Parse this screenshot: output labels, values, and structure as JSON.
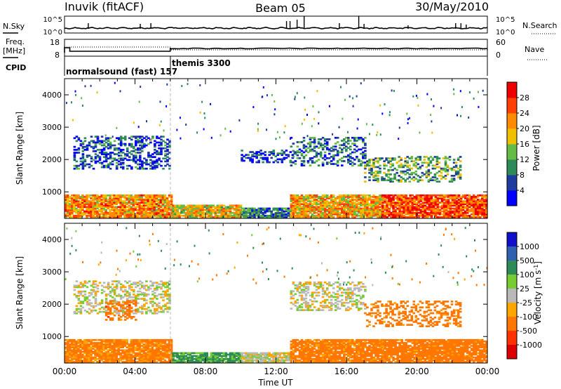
{
  "header": {
    "station": "Inuvik (fitACF)",
    "beam": "Beam 05",
    "date": "30/May/2010"
  },
  "nsky_panel": {
    "left_label": "N.Sky",
    "right_label": "N.Search",
    "ticks": [
      "10^5",
      "10^0"
    ],
    "right_ticks": [
      "10^5",
      "10^0"
    ]
  },
  "freq_panel": {
    "left_label_1": "Freq.",
    "left_label_2": "[MHz]",
    "right_label": "Nave",
    "ticks": [
      "18",
      "8"
    ],
    "right_ticks": [
      "60",
      "0"
    ]
  },
  "cpid": {
    "label": "CPID",
    "segments": [
      {
        "name": "normalsound (fast) 157",
        "start_hour": 0,
        "end_hour": 6
      },
      {
        "name": "themis 3300",
        "start_hour": 6,
        "end_hour": 24
      }
    ]
  },
  "colors": {
    "power_scale": [
      "#0000ff",
      "#1e3ca0",
      "#2e8b57",
      "#66bb44",
      "#f0c000",
      "#ff8c00",
      "#ff4000",
      "#ee0000"
    ],
    "velocity_scale": [
      "#1010cc",
      "#3060b0",
      "#2e8b57",
      "#77cc33",
      "#b9b9b9",
      "#ffa500",
      "#ff7700",
      "#ff3300",
      "#dd0000"
    ]
  },
  "chart_data": [
    {
      "type": "heatmap",
      "name": "power",
      "xlabel": "",
      "ylabel": "Slant Range [km]",
      "xlim_hours": [
        0,
        24
      ],
      "ylim_km": [
        180,
        4500
      ],
      "yticks": [
        1000,
        2000,
        3000,
        4000
      ],
      "colorbar": {
        "label": "Power [dB]",
        "ticks": [
          "4",
          "8",
          "12",
          "16",
          "20",
          "24",
          "28"
        ],
        "range": [
          0,
          30
        ]
      },
      "regions": [
        {
          "t0": 0.0,
          "t1": 6.1,
          "r0": 200,
          "r1": 900,
          "level": 22
        },
        {
          "t0": 6.1,
          "t1": 10.0,
          "r0": 200,
          "r1": 600,
          "level": 18
        },
        {
          "t0": 10.0,
          "t1": 12.8,
          "r0": 200,
          "r1": 500,
          "level": 8
        },
        {
          "t0": 12.8,
          "t1": 18.0,
          "r0": 200,
          "r1": 900,
          "level": 20
        },
        {
          "t0": 18.0,
          "t1": 24.0,
          "r0": 200,
          "r1": 900,
          "level": 26
        },
        {
          "t0": 0.5,
          "t1": 6.0,
          "r0": 1700,
          "r1": 2700,
          "level": 6
        },
        {
          "t0": 10.0,
          "t1": 13.0,
          "r0": 1900,
          "r1": 2300,
          "level": 5
        },
        {
          "t0": 12.8,
          "t1": 17.0,
          "r0": 1800,
          "r1": 2700,
          "level": 8
        },
        {
          "t0": 17.0,
          "t1": 22.5,
          "r0": 1300,
          "r1": 2100,
          "level": 12
        }
      ]
    },
    {
      "type": "heatmap",
      "name": "velocity",
      "xlabel": "Time UT",
      "ylabel": "Slant Range [km]",
      "xlim_hours": [
        0,
        24
      ],
      "ylim_km": [
        180,
        4500
      ],
      "yticks": [
        1000,
        2000,
        3000,
        4000
      ],
      "xticks": [
        "00:00",
        "04:00",
        "08:00",
        "12:00",
        "16:00",
        "20:00",
        "00:00"
      ],
      "colorbar": {
        "label": "Velocity [m s",
        "label_sup": "-1",
        "label_end": "]",
        "ticks": [
          "1000",
          "500",
          "100",
          "25",
          "-25",
          "-100",
          "-500",
          "-1000"
        ]
      },
      "regions": [
        {
          "t0": 0.0,
          "t1": 6.1,
          "r0": 200,
          "r1": 900,
          "velocity": -150
        },
        {
          "t0": 6.1,
          "t1": 10.0,
          "r0": 200,
          "r1": 500,
          "velocity": 150
        },
        {
          "t0": 10.0,
          "t1": 12.8,
          "r0": 200,
          "r1": 500,
          "velocity": 0
        },
        {
          "t0": 12.8,
          "t1": 18.0,
          "r0": 200,
          "r1": 900,
          "velocity": -200
        },
        {
          "t0": 18.0,
          "t1": 24.0,
          "r0": 200,
          "r1": 900,
          "velocity": -250
        },
        {
          "t0": 0.5,
          "t1": 6.0,
          "r0": 1700,
          "r1": 2700,
          "velocity": 0
        },
        {
          "t0": 2.3,
          "t1": 4.0,
          "r0": 1500,
          "r1": 2100,
          "velocity": -300
        },
        {
          "t0": 12.8,
          "t1": 17.0,
          "r0": 1800,
          "r1": 2700,
          "velocity": 0
        },
        {
          "t0": 17.0,
          "t1": 22.5,
          "r0": 1300,
          "r1": 2100,
          "velocity": -250
        }
      ]
    }
  ]
}
